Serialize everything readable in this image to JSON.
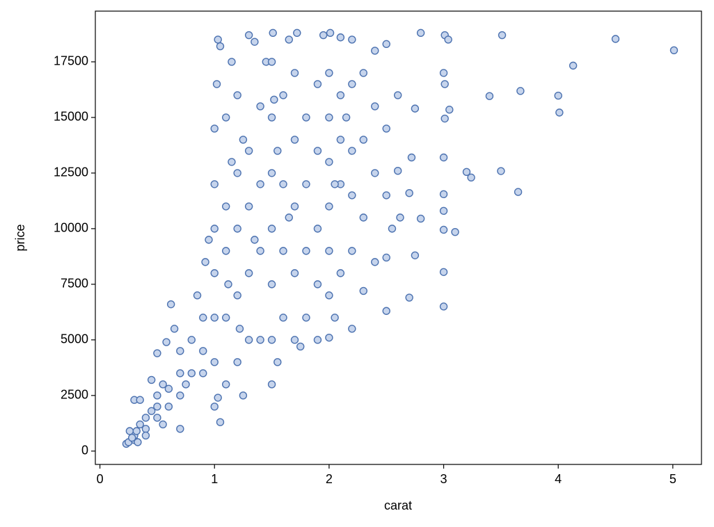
{
  "chart_data": {
    "type": "scatter",
    "xlabel": "carat",
    "ylabel": "price",
    "xlim": [
      -0.04,
      5.25
    ],
    "ylim": [
      -600,
      19780
    ],
    "xticks": [
      0,
      1,
      2,
      3,
      4,
      5
    ],
    "yticks": [
      0,
      2500,
      5000,
      7500,
      10000,
      12500,
      15000,
      17500
    ],
    "grid": false,
    "color": "#4c72b0",
    "fill": "#c6d4ec",
    "x": [
      0.23,
      0.25,
      0.3,
      0.3,
      0.32,
      0.35,
      0.4,
      0.4,
      0.45,
      0.5,
      0.5,
      0.5,
      0.55,
      0.6,
      0.6,
      0.62,
      0.7,
      0.7,
      0.7,
      0.75,
      0.8,
      0.8,
      0.9,
      0.9,
      0.9,
      0.92,
      0.3,
      0.35,
      0.26,
      0.28,
      0.33,
      0.4,
      0.55,
      0.7,
      0.5,
      0.58,
      0.85,
      0.95,
      0.65,
      0.45,
      1.0,
      1.0,
      1.0,
      1.0,
      1.0,
      1.0,
      1.0,
      1.02,
      1.03,
      1.05,
      1.1,
      1.1,
      1.1,
      1.1,
      1.1,
      1.15,
      1.2,
      1.2,
      1.2,
      1.2,
      1.2,
      1.25,
      1.3,
      1.3,
      1.3,
      1.3,
      1.3,
      1.35,
      1.4,
      1.4,
      1.4,
      1.4,
      1.45,
      1.05,
      1.03,
      1.15,
      1.25,
      1.35,
      1.12,
      1.22,
      1.5,
      1.5,
      1.5,
      1.5,
      1.5,
      1.5,
      1.5,
      1.51,
      1.55,
      1.6,
      1.6,
      1.6,
      1.6,
      1.65,
      1.7,
      1.7,
      1.7,
      1.7,
      1.7,
      1.72,
      1.8,
      1.8,
      1.8,
      1.8,
      1.9,
      1.9,
      1.9,
      1.9,
      1.9,
      1.95,
      1.55,
      1.65,
      1.75,
      1.52,
      2.0,
      2.0,
      2.0,
      2.0,
      2.0,
      2.0,
      2.0,
      2.01,
      2.05,
      2.1,
      2.1,
      2.1,
      2.1,
      2.1,
      2.2,
      2.2,
      2.2,
      2.2,
      2.2,
      2.2,
      2.3,
      2.3,
      2.3,
      2.3,
      2.4,
      2.4,
      2.4,
      2.4,
      2.5,
      2.5,
      2.5,
      2.5,
      2.5,
      2.55,
      2.6,
      2.6,
      2.62,
      2.7,
      2.7,
      2.72,
      2.75,
      2.8,
      2.8,
      2.75,
      2.15,
      2.05,
      3.0,
      3.0,
      3.0,
      3.0,
      3.0,
      3.0,
      3.01,
      3.01,
      3.0,
      3.01,
      3.04,
      3.05,
      3.1,
      3.2,
      3.24,
      3.4,
      3.5,
      3.51,
      3.65,
      3.67,
      4.0,
      4.01,
      4.13,
      4.5,
      5.01
    ],
    "y": [
      326,
      400,
      500,
      700,
      900,
      1200,
      1000,
      1500,
      1800,
      1500,
      2000,
      2500,
      3000,
      2000,
      2800,
      6600,
      2500,
      3500,
      4500,
      3000,
      3500,
      5000,
      3500,
      4500,
      6000,
      8500,
      2300,
      2300,
      900,
      600,
      400,
      700,
      1200,
      1000,
      4400,
      4900,
      7000,
      9500,
      5500,
      3200,
      2000,
      4000,
      6000,
      8000,
      10000,
      12000,
      14500,
      16500,
      18500,
      18200,
      3000,
      6000,
      9000,
      11000,
      15000,
      17500,
      4000,
      7000,
      10000,
      12500,
      16000,
      2500,
      5000,
      8000,
      11000,
      13500,
      18700,
      18400,
      5000,
      9000,
      12000,
      15500,
      17500,
      1300,
      2400,
      13000,
      14000,
      9500,
      7500,
      5500,
      3000,
      5000,
      7500,
      10000,
      12500,
      15000,
      17500,
      18800,
      4000,
      6000,
      9000,
      12000,
      16000,
      18500,
      5000,
      8000,
      11000,
      14000,
      17000,
      18800,
      6000,
      9000,
      12000,
      15000,
      5000,
      7500,
      10000,
      13500,
      16500,
      18700,
      13500,
      10500,
      4700,
      15800,
      5100,
      7000,
      9000,
      11000,
      13000,
      15000,
      17000,
      18800,
      6000,
      8000,
      12000,
      14000,
      16000,
      18600,
      5500,
      9000,
      11500,
      13500,
      16500,
      18500,
      7200,
      10500,
      14000,
      17000,
      8500,
      12500,
      15500,
      18000,
      6300,
      8700,
      11500,
      14500,
      18300,
      10000,
      12600,
      16000,
      10500,
      6900,
      11600,
      13200,
      15400,
      18800,
      10450,
      8800,
      15000,
      12000,
      6500,
      8050,
      9950,
      10800,
      11550,
      13200,
      14950,
      16500,
      17000,
      18700,
      18500,
      15350,
      9850,
      12550,
      12300,
      15960,
      12590,
      18700,
      11650,
      16190,
      15980,
      15220,
      17330,
      18530,
      18020
    ]
  }
}
